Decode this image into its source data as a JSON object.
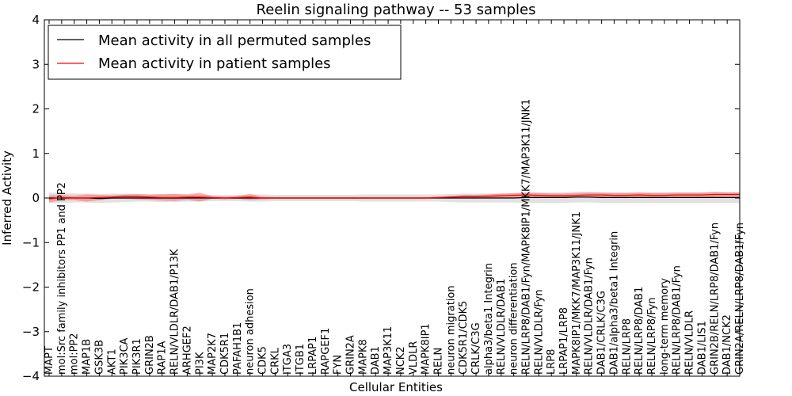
{
  "chart_data": {
    "type": "line",
    "title": "Reelin signaling pathway -- 53 samples",
    "xlabel": "Cellular Entities",
    "ylabel": "Inferred Activity",
    "ylim": [
      -4,
      4
    ],
    "yticks": [
      "−4",
      "−3",
      "−2",
      "−1",
      "0",
      "1",
      "2",
      "3",
      "4"
    ],
    "legend": {
      "placement": "top-left",
      "entries": [
        {
          "label": "Mean activity in all permuted samples",
          "color": "#000000"
        },
        {
          "label": "Mean activity in patient samples",
          "color": "#ff0000"
        }
      ]
    },
    "categories": [
      "MAPT",
      "mol:Src family inhibitors PP1 and PP2",
      "mol:PP2",
      "MAP1B",
      "GSK3B",
      "AKT1",
      "PIK3CA",
      "PIK3R1",
      "GRIN2B",
      "RAP1A",
      "RELN/VLDLR/DAB1/P13K",
      "ARHGEF2",
      "PI3K",
      "MAP2K7",
      "CDK5R1",
      "PAFAH1B1",
      "neuron adhesion",
      "CDK5",
      "CRKL",
      "ITGA3",
      "ITGB1",
      "LRPAP1",
      "RAPGEF1",
      "FYN",
      "GRIN2A",
      "MAPK8",
      "DAB1",
      "MAP3K11",
      "NCK2",
      "VLDLR",
      "MAPK8IP1",
      "RELN",
      "neuron migration",
      "CDK5R1/CDK5",
      "CRLK/C3G",
      "alpha3/beta1 Integrin",
      "RELN/VLDLR/DAB1",
      "neuron differentiation",
      "RELN/LRP8/DAB1/Fyn/MAPK8IP1/MKK7/MAP3K11/JNK1",
      "RELN/VLDLR/Fyn",
      "LRP8",
      "LRPAP1/LRP8",
      "MAPK8IP1/MKK7/MAP3K11/JNK1",
      "RELN/VLDLR/DAB1/Fyn",
      "DAB1/CRLK/C3G",
      "DAB1/alpha3/beta1 Integrin",
      "RELN/LRP8",
      "RELN/LRP8/DAB1",
      "RELN/LRP8/Fyn",
      "long-term memory",
      "RELN/LRP8/DAB1/Fyn",
      "RELN/VLDLR",
      "DAB1/LIS1",
      "GRIN2B/RELN/LRP8/DAB1/Fyn",
      "DAB1/NCK2",
      "GRIN2A/RELN/LRP8/DAB1/Fyn"
    ],
    "series": [
      {
        "name": "Mean activity in all permuted samples",
        "color": "#000000",
        "values": [
          0.0,
          0.0,
          0.0,
          0.0,
          -0.01,
          0.0,
          0.0,
          0.0,
          0.0,
          0.0,
          0.0,
          0.0,
          0.0,
          0.0,
          0.0,
          0.0,
          0.0,
          0.0,
          0.0,
          0.0,
          0.0,
          0.0,
          0.0,
          0.0,
          0.0,
          0.0,
          0.0,
          0.0,
          0.0,
          0.0,
          0.0,
          0.0,
          0.0,
          0.0,
          0.0,
          0.0,
          0.0,
          0.0,
          0.01,
          0.01,
          0.01,
          0.01,
          0.02,
          0.02,
          0.01,
          0.01,
          0.01,
          0.01,
          0.01,
          0.01,
          0.01,
          0.01,
          0.01,
          0.01,
          0.01,
          0.01
        ],
        "band": [
          0.12,
          0.11,
          0.1,
          0.1,
          0.1,
          0.1,
          0.09,
          0.08,
          0.08,
          0.09,
          0.09,
          0.08,
          0.08,
          0.07,
          0.07,
          0.07,
          0.08,
          0.08,
          0.07,
          0.07,
          0.07,
          0.07,
          0.07,
          0.07,
          0.07,
          0.08,
          0.08,
          0.08,
          0.08,
          0.08,
          0.08,
          0.08,
          0.09,
          0.1,
          0.1,
          0.1,
          0.1,
          0.1,
          0.12,
          0.12,
          0.12,
          0.12,
          0.12,
          0.12,
          0.12,
          0.12,
          0.12,
          0.12,
          0.12,
          0.12,
          0.12,
          0.12,
          0.12,
          0.12,
          0.12,
          0.12
        ]
      },
      {
        "name": "Mean activity in patient samples",
        "color": "#ff0000",
        "values": [
          -0.02,
          0.01,
          0.0,
          0.0,
          0.01,
          0.02,
          0.03,
          0.03,
          0.02,
          0.01,
          0.01,
          0.02,
          0.02,
          0.01,
          0.0,
          0.01,
          0.02,
          0.0,
          0.0,
          0.0,
          0.0,
          0.0,
          0.0,
          0.0,
          0.0,
          0.0,
          0.0,
          0.0,
          0.0,
          0.0,
          0.0,
          0.01,
          0.02,
          0.03,
          0.03,
          0.04,
          0.05,
          0.06,
          0.07,
          0.06,
          0.05,
          0.05,
          0.06,
          0.07,
          0.07,
          0.06,
          0.06,
          0.07,
          0.06,
          0.06,
          0.07,
          0.07,
          0.07,
          0.08,
          0.08,
          0.08
        ],
        "band": [
          0.08,
          0.06,
          0.05,
          0.08,
          0.06,
          0.04,
          0.05,
          0.06,
          0.06,
          0.07,
          0.08,
          0.06,
          0.1,
          0.03,
          0.03,
          0.03,
          0.07,
          0.03,
          0.02,
          0.02,
          0.02,
          0.02,
          0.02,
          0.02,
          0.02,
          0.02,
          0.02,
          0.02,
          0.02,
          0.02,
          0.02,
          0.02,
          0.03,
          0.04,
          0.04,
          0.04,
          0.05,
          0.05,
          0.05,
          0.05,
          0.05,
          0.05,
          0.05,
          0.05,
          0.05,
          0.05,
          0.05,
          0.05,
          0.05,
          0.05,
          0.05,
          0.05,
          0.05,
          0.06,
          0.05,
          0.05
        ]
      }
    ]
  }
}
